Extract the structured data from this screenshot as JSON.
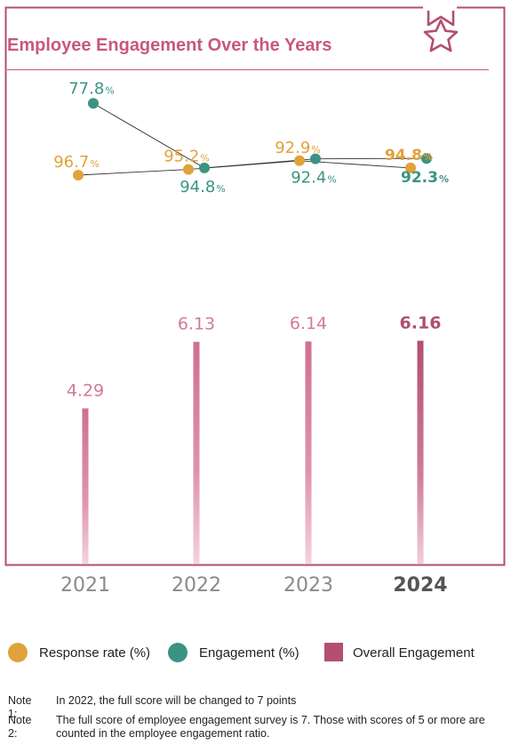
{
  "chart_data": {
    "type": "bar+line",
    "title": "Employee Engagement Over the Years",
    "categories": [
      "2021",
      "2022",
      "2023",
      "2024"
    ],
    "highlight_category": "2024",
    "series": [
      {
        "name": "Response rate (%)",
        "type": "line",
        "color": "#e0a23a",
        "values": [
          96.7,
          95.2,
          92.9,
          94.8
        ],
        "labels": [
          "96.7",
          "95.2",
          "92.9",
          "94.8"
        ],
        "unit": "%"
      },
      {
        "name": "Engagement (%)",
        "type": "line",
        "color": "#3b9383",
        "values": [
          77.8,
          94.8,
          92.4,
          92.3
        ],
        "labels": [
          "77.8",
          "94.8",
          "92.4",
          "92.3"
        ],
        "unit": "%"
      },
      {
        "name": "Overall Engagement",
        "type": "bar",
        "color": "#c8587c",
        "values": [
          4.29,
          6.13,
          6.14,
          6.16
        ],
        "labels": [
          "4.29",
          "6.13",
          "6.14",
          "6.16"
        ]
      }
    ]
  },
  "colors": {
    "frame": "#b34e72",
    "title": "#c8587c",
    "bar": "#d47a9a",
    "bar_highlight": "#b34e72",
    "response": "#e0a23a",
    "engagement": "#3b9383",
    "axis_label": "#8a8a8a",
    "axis_label_highlight": "#555555"
  },
  "icons": {
    "badge": "star-ribbon-icon"
  },
  "notes": [
    {
      "label": "Note 1:",
      "text": "In 2022, the full score will be changed to 7 points"
    },
    {
      "label": "Note 2:",
      "text": "The full score of employee engagement survey is 7. Those with scores of 5 or more are counted in the employee engagement ratio."
    }
  ]
}
